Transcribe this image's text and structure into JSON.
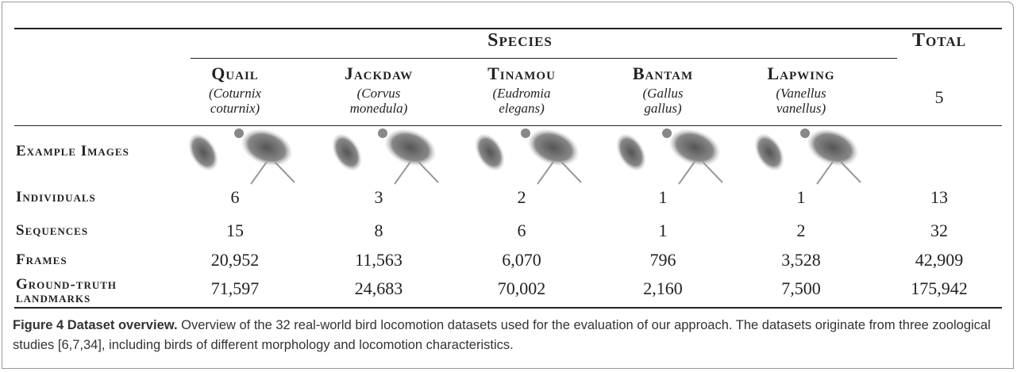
{
  "table": {
    "header": {
      "group": "Species",
      "total": "Total"
    },
    "columns": [
      {
        "name": "Quail",
        "latin": [
          "(Coturnix",
          "coturnix)"
        ]
      },
      {
        "name": "Jackdaw",
        "latin": [
          "(Corvus",
          "monedula)"
        ]
      },
      {
        "name": "Tinamou",
        "latin": [
          "(Eudromia",
          "elegans)"
        ]
      },
      {
        "name": "Bantam",
        "latin": [
          "(Gallus",
          "gallus)"
        ]
      },
      {
        "name": "Lapwing",
        "latin": [
          "(Vanellus",
          "vanellus)"
        ]
      }
    ],
    "total_species": "5",
    "images_label": "Example Images",
    "rows": [
      {
        "label": "Individuals",
        "values": [
          "6",
          "3",
          "2",
          "1",
          "1",
          "13"
        ]
      },
      {
        "label": "Sequences",
        "values": [
          "15",
          "8",
          "6",
          "1",
          "2",
          "32"
        ]
      },
      {
        "label": "Frames",
        "values": [
          "20,952",
          "11,563",
          "6,070",
          "796",
          "3,528",
          "42,909"
        ]
      },
      {
        "label": "Ground-truth landmarks",
        "values": [
          "71,597",
          "24,683",
          "70,002",
          "2,160",
          "7,500",
          "175,942"
        ]
      }
    ]
  },
  "caption": {
    "label": "Figure 4 Dataset overview.",
    "text": "Overview of the 32 real-world bird locomotion datasets used for the evaluation of our approach. The datasets originate from three zoological studies [6,7,34], including birds of different morphology and locomotion characteristics."
  }
}
